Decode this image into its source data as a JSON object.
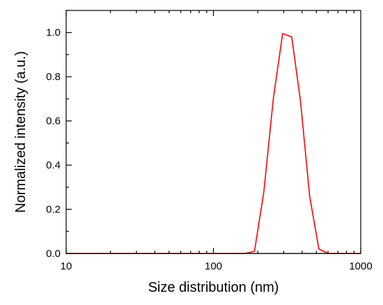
{
  "chart_data": {
    "type": "line",
    "title": "",
    "xlabel": "Size distribution (nm)",
    "ylabel": "Normalized intensity (a.u.)",
    "xscale": "log",
    "xlim": [
      10,
      1000
    ],
    "ylim": [
      0.0,
      1.1
    ],
    "x_ticks": [
      10,
      100,
      1000
    ],
    "x_tick_labels": [
      "10",
      "100",
      "1000"
    ],
    "y_ticks": [
      0.0,
      0.2,
      0.4,
      0.6,
      0.8,
      1.0
    ],
    "y_tick_labels": [
      "0.0",
      "0.2",
      "0.4",
      "0.6",
      "0.8",
      "1.0"
    ],
    "grid": false,
    "legend": "none",
    "series": [
      {
        "color": "#ff0000",
        "x": [
          10,
          164,
          190,
          220,
          255,
          295,
          340,
          390,
          450,
          520,
          600,
          1000
        ],
        "y": [
          0.0,
          0.0,
          0.01,
          0.28,
          0.7,
          0.995,
          0.98,
          0.69,
          0.26,
          0.02,
          0.0,
          0.0
        ]
      }
    ],
    "baseline": {
      "color": "#000000",
      "y": 0.0
    }
  }
}
